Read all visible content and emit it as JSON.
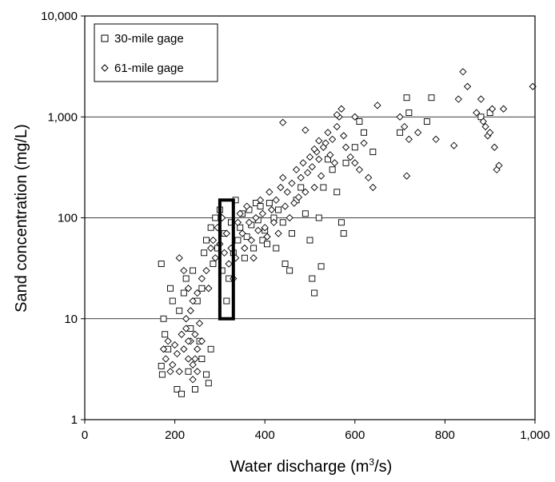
{
  "chart_data": {
    "type": "scatter",
    "title": "",
    "xlabel": "Water discharge (m",
    "xlabel_sup": "3",
    "xlabel_tail": "/s)",
    "ylabel": "Sand concentration (mg/L)",
    "xlim": [
      0,
      1000
    ],
    "ylim": [
      1,
      10000
    ],
    "yscale": "log",
    "grid": "horizontal",
    "legend_position": "top-left",
    "x_ticks": [
      0,
      200,
      400,
      600,
      800,
      1000
    ],
    "x_tick_labels": [
      "0",
      "200",
      "400",
      "600",
      "800",
      "1,000"
    ],
    "y_ticks": [
      1,
      10,
      100,
      1000,
      10000
    ],
    "y_tick_labels": [
      "1",
      "10",
      "100",
      "1,000",
      "10,000"
    ],
    "highlight_box": {
      "x": [
        300,
        330
      ],
      "y": [
        10,
        150
      ]
    },
    "series": [
      {
        "name": "30-mile gage",
        "marker": "square",
        "points": [
          [
            170,
            35
          ],
          [
            175,
            10
          ],
          [
            178,
            7
          ],
          [
            185,
            5
          ],
          [
            190,
            20
          ],
          [
            195,
            15
          ],
          [
            170,
            3.4
          ],
          [
            172,
            2.8
          ],
          [
            205,
            2.0
          ],
          [
            215,
            1.8
          ],
          [
            230,
            3
          ],
          [
            245,
            2
          ],
          [
            260,
            4
          ],
          [
            270,
            2.8
          ],
          [
            275,
            2.3
          ],
          [
            280,
            5
          ],
          [
            210,
            12
          ],
          [
            220,
            18
          ],
          [
            225,
            25
          ],
          [
            235,
            8
          ],
          [
            240,
            30
          ],
          [
            250,
            15
          ],
          [
            255,
            6
          ],
          [
            260,
            20
          ],
          [
            265,
            45
          ],
          [
            270,
            60
          ],
          [
            280,
            80
          ],
          [
            285,
            35
          ],
          [
            290,
            100
          ],
          [
            295,
            50
          ],
          [
            300,
            120
          ],
          [
            305,
            30
          ],
          [
            310,
            70
          ],
          [
            315,
            15
          ],
          [
            320,
            25
          ],
          [
            325,
            90
          ],
          [
            330,
            45
          ],
          [
            335,
            150
          ],
          [
            340,
            60
          ],
          [
            345,
            80
          ],
          [
            350,
            110
          ],
          [
            355,
            40
          ],
          [
            360,
            65
          ],
          [
            365,
            120
          ],
          [
            370,
            85
          ],
          [
            375,
            50
          ],
          [
            380,
            140
          ],
          [
            385,
            95
          ],
          [
            390,
            130
          ],
          [
            395,
            60
          ],
          [
            400,
            75
          ],
          [
            405,
            55
          ],
          [
            410,
            140
          ],
          [
            420,
            100
          ],
          [
            425,
            50
          ],
          [
            430,
            120
          ],
          [
            440,
            90
          ],
          [
            445,
            35
          ],
          [
            455,
            30
          ],
          [
            460,
            70
          ],
          [
            470,
            150
          ],
          [
            480,
            200
          ],
          [
            490,
            110
          ],
          [
            500,
            60
          ],
          [
            505,
            25
          ],
          [
            510,
            18
          ],
          [
            520,
            100
          ],
          [
            525,
            33
          ],
          [
            530,
            200
          ],
          [
            540,
            380
          ],
          [
            550,
            300
          ],
          [
            560,
            180
          ],
          [
            570,
            90
          ],
          [
            575,
            70
          ],
          [
            580,
            350
          ],
          [
            600,
            500
          ],
          [
            610,
            900
          ],
          [
            620,
            700
          ],
          [
            640,
            450
          ],
          [
            700,
            700
          ],
          [
            715,
            1550
          ],
          [
            720,
            1100
          ],
          [
            760,
            900
          ],
          [
            770,
            1550
          ],
          [
            880,
            1000
          ],
          [
            900,
            1100
          ]
        ]
      },
      {
        "name": "61-mile gage",
        "marker": "diamond",
        "points": [
          [
            175,
            5
          ],
          [
            180,
            4
          ],
          [
            185,
            6
          ],
          [
            190,
            3
          ],
          [
            195,
            3.5
          ],
          [
            200,
            5.5
          ],
          [
            205,
            4.5
          ],
          [
            210,
            3
          ],
          [
            215,
            7
          ],
          [
            220,
            5
          ],
          [
            225,
            8
          ],
          [
            230,
            4
          ],
          [
            235,
            6
          ],
          [
            240,
            3.5
          ],
          [
            245,
            7
          ],
          [
            250,
            5
          ],
          [
            255,
            9
          ],
          [
            260,
            6
          ],
          [
            240,
            2.5
          ],
          [
            245,
            4
          ],
          [
            250,
            3
          ],
          [
            230,
            6
          ],
          [
            225,
            10
          ],
          [
            235,
            12
          ],
          [
            210,
            40
          ],
          [
            220,
            30
          ],
          [
            230,
            20
          ],
          [
            240,
            15
          ],
          [
            250,
            18
          ],
          [
            260,
            25
          ],
          [
            270,
            30
          ],
          [
            275,
            20
          ],
          [
            280,
            50
          ],
          [
            285,
            60
          ],
          [
            290,
            40
          ],
          [
            295,
            80
          ],
          [
            300,
            55
          ],
          [
            305,
            100
          ],
          [
            310,
            45
          ],
          [
            315,
            70
          ],
          [
            320,
            35
          ],
          [
            325,
            50
          ],
          [
            330,
            25
          ],
          [
            335,
            40
          ],
          [
            340,
            90
          ],
          [
            345,
            110
          ],
          [
            350,
            70
          ],
          [
            355,
            50
          ],
          [
            360,
            130
          ],
          [
            365,
            90
          ],
          [
            370,
            60
          ],
          [
            375,
            40
          ],
          [
            380,
            100
          ],
          [
            385,
            75
          ],
          [
            390,
            150
          ],
          [
            395,
            110
          ],
          [
            400,
            80
          ],
          [
            405,
            65
          ],
          [
            410,
            180
          ],
          [
            415,
            120
          ],
          [
            420,
            90
          ],
          [
            425,
            150
          ],
          [
            430,
            70
          ],
          [
            435,
            200
          ],
          [
            440,
            250
          ],
          [
            445,
            130
          ],
          [
            450,
            180
          ],
          [
            455,
            100
          ],
          [
            460,
            220
          ],
          [
            465,
            140
          ],
          [
            470,
            300
          ],
          [
            475,
            160
          ],
          [
            480,
            250
          ],
          [
            485,
            350
          ],
          [
            490,
            180
          ],
          [
            495,
            280
          ],
          [
            500,
            400
          ],
          [
            505,
            320
          ],
          [
            510,
            200
          ],
          [
            515,
            450
          ],
          [
            520,
            380
          ],
          [
            525,
            260
          ],
          [
            530,
            500
          ],
          [
            535,
            550
          ],
          [
            540,
            700
          ],
          [
            545,
            420
          ],
          [
            550,
            600
          ],
          [
            555,
            350
          ],
          [
            560,
            800
          ],
          [
            565,
            1000
          ],
          [
            570,
            1200
          ],
          [
            575,
            650
          ],
          [
            580,
            500
          ],
          [
            590,
            400
          ],
          [
            600,
            350
          ],
          [
            610,
            300
          ],
          [
            620,
            550
          ],
          [
            630,
            250
          ],
          [
            640,
            200
          ],
          [
            650,
            1300
          ],
          [
            700,
            1000
          ],
          [
            710,
            800
          ],
          [
            715,
            260
          ],
          [
            720,
            600
          ],
          [
            740,
            700
          ],
          [
            780,
            600
          ],
          [
            820,
            520
          ],
          [
            830,
            1500
          ],
          [
            840,
            2800
          ],
          [
            850,
            2000
          ],
          [
            870,
            1100
          ],
          [
            880,
            1500
          ],
          [
            885,
            900
          ],
          [
            890,
            800
          ],
          [
            895,
            650
          ],
          [
            900,
            700
          ],
          [
            905,
            1200
          ],
          [
            910,
            500
          ],
          [
            915,
            300
          ],
          [
            920,
            330
          ],
          [
            930,
            1200
          ],
          [
            995,
            2000
          ],
          [
            440,
            880
          ],
          [
            490,
            740
          ],
          [
            560,
            1050
          ],
          [
            600,
            1000
          ],
          [
            520,
            580
          ],
          [
            510,
            480
          ]
        ]
      }
    ]
  }
}
